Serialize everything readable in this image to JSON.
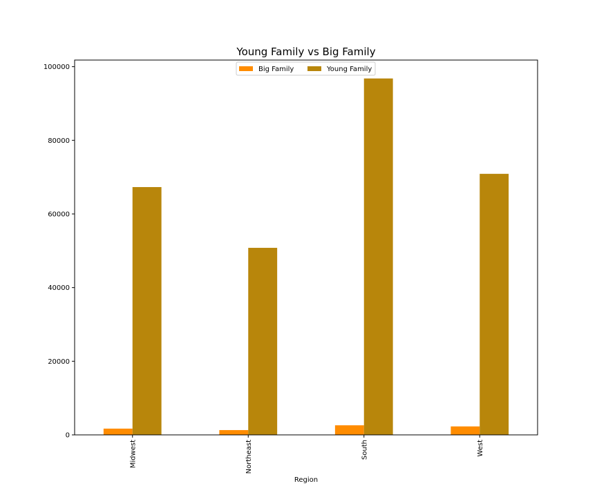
{
  "chart_data": {
    "type": "bar",
    "title": "Young Family vs Big Family",
    "xlabel": "Region",
    "ylabel": "",
    "categories": [
      "Midwest",
      "Northeast",
      "South",
      "West"
    ],
    "series": [
      {
        "name": "Big Family",
        "values": [
          1700,
          1300,
          2600,
          2300
        ],
        "color": "#ff8c00"
      },
      {
        "name": "Young Family",
        "values": [
          67300,
          50800,
          96800,
          70900
        ],
        "color": "#b8860b"
      }
    ],
    "ylim": [
      0,
      101800
    ],
    "yticks": [
      0,
      20000,
      40000,
      60000,
      80000,
      100000
    ],
    "ytick_labels": [
      "0",
      "20000",
      "40000",
      "60000",
      "80000",
      "100000"
    ],
    "legend": {
      "placement": "top-center",
      "columns": 2
    },
    "grid": false
  }
}
